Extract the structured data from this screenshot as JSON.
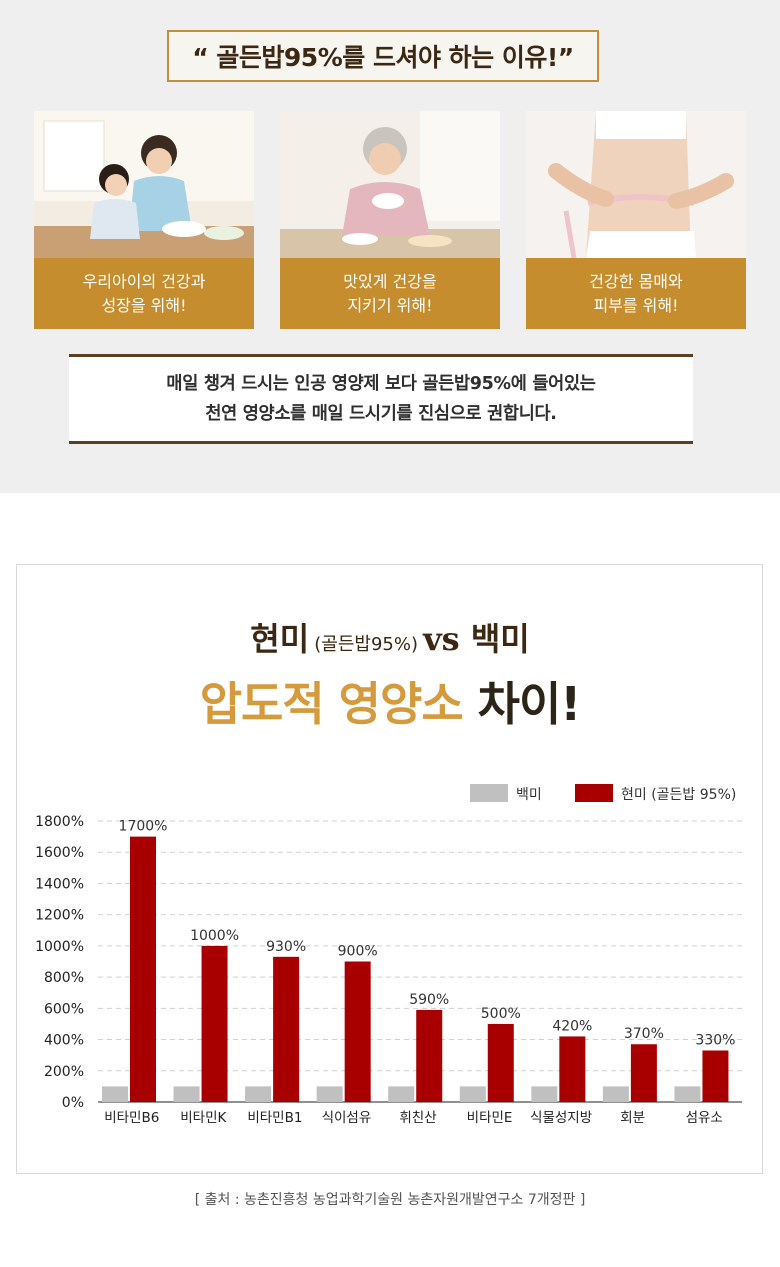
{
  "header": {
    "headline": "“ 골든밥95%를 드셔야 하는 이유!”"
  },
  "cards": [
    {
      "line1": "우리아이의 건강과",
      "line2": "성장을 위해!"
    },
    {
      "line1": "맛있게 건강을",
      "line2": "지키기 위해!"
    },
    {
      "line1": "건강한 몸매와",
      "line2": "피부를 위해!"
    }
  ],
  "note": {
    "line1": "매일 챙겨 드시는 인공 영양제 보다 골든밥95%에 들어있는",
    "line2": "천연 영양소를 매일 드시기를 진심으로 권합니다."
  },
  "chart_titles": {
    "line1_main": "현미",
    "line1_paren": "(골든밥95%)",
    "line1_vs": "vs 백미",
    "line2_gold": "압도적 영양소",
    "line2_dark": "차이!"
  },
  "source": "[ 출처 : 농촌진흥청 농업과학기술원 농촌자원개발연구소 7개정판 ]",
  "chart_data": {
    "type": "bar",
    "categories": [
      "비타민B6",
      "비타민K",
      "비타민B1",
      "식이섬유",
      "휘친산",
      "비타민E",
      "식물성지방",
      "회분",
      "섬유소"
    ],
    "series": [
      {
        "name": "백미",
        "color": "#c0c0c0",
        "values": [
          100,
          100,
          100,
          100,
          100,
          100,
          100,
          100,
          100
        ]
      },
      {
        "name": "현미 (골든밥 95%)",
        "color": "#a80000",
        "values": [
          1700,
          1000,
          930,
          900,
          590,
          500,
          420,
          370,
          330
        ],
        "labels": [
          "1700%",
          "1000%",
          "930%",
          "900%",
          "590%",
          "500%",
          "420%",
          "370%",
          "330%"
        ]
      }
    ],
    "ylim": [
      0,
      1800
    ],
    "yticks": [
      "0%",
      "200%",
      "400%",
      "600%",
      "800%",
      "1000%",
      "1200%",
      "1400%",
      "1600%",
      "1800%"
    ],
    "grid": true,
    "legend": "top-right"
  }
}
